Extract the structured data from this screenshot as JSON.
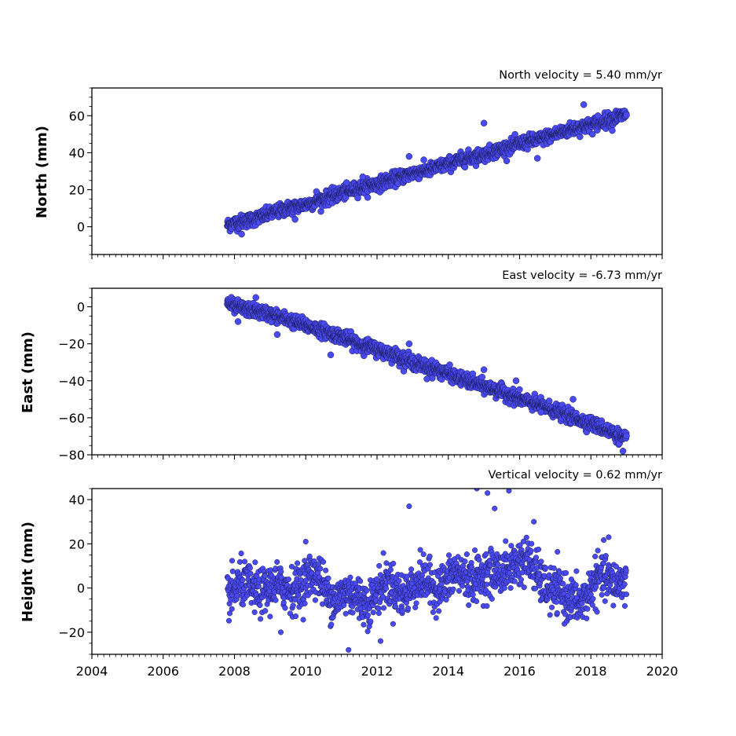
{
  "chart_data": [
    {
      "type": "scatter",
      "title": "North velocity = 5.40 mm/yr",
      "ylabel": "North (mm)",
      "xlim": [
        2004,
        2020
      ],
      "ylim": [
        -15,
        75
      ],
      "yticks": [
        0,
        20,
        40,
        60
      ],
      "ytick_labels": [
        "0",
        "20",
        "40",
        "60"
      ],
      "marker_color": "#4a4af2",
      "series": [
        {
          "x": [
            2007.8,
            2008.0,
            2008.5,
            2009.0,
            2009.5,
            2010.0,
            2010.5,
            2011.0,
            2011.5,
            2012.0,
            2012.5,
            2013.0,
            2013.5,
            2014.0,
            2014.5,
            2015.0,
            2015.5,
            2016.0,
            2016.5,
            2017.0,
            2017.5,
            2018.0,
            2018.5,
            2019.0
          ],
          "y": [
            1,
            2,
            4,
            7,
            10,
            12,
            15,
            18,
            21,
            23,
            26,
            29,
            31,
            34,
            37,
            39,
            42,
            45,
            47,
            50,
            53,
            55,
            58,
            61
          ]
        }
      ],
      "outliers": {
        "x": [
          2008.2,
          2009.7,
          2010.3,
          2011.6,
          2012.9,
          2015.0,
          2016.5,
          2017.8,
          2018.2,
          2018.6
        ],
        "y": [
          -4,
          4,
          19,
          27,
          38,
          56,
          37,
          66,
          60,
          52
        ]
      }
    },
    {
      "type": "scatter",
      "title": "East velocity = -6.73 mm/yr",
      "ylabel": "East (mm)",
      "xlim": [
        2004,
        2020
      ],
      "ylim": [
        -80,
        10
      ],
      "yticks": [
        0,
        -20,
        -40,
        -60,
        -80
      ],
      "ytick_labels": [
        "0",
        "−20",
        "−40",
        "−60",
        "−80"
      ],
      "marker_color": "#4a4af2",
      "series": [
        {
          "x": [
            2007.8,
            2008.0,
            2008.5,
            2009.0,
            2009.5,
            2010.0,
            2010.5,
            2011.0,
            2011.5,
            2012.0,
            2012.5,
            2013.0,
            2013.5,
            2014.0,
            2014.5,
            2015.0,
            2015.5,
            2016.0,
            2016.5,
            2017.0,
            2017.5,
            2018.0,
            2018.5,
            2019.0
          ],
          "y": [
            2,
            0,
            -2,
            -4,
            -7,
            -10,
            -13,
            -16,
            -20,
            -23,
            -26,
            -30,
            -33,
            -36,
            -40,
            -43,
            -46,
            -50,
            -53,
            -56,
            -60,
            -63,
            -67,
            -72
          ]
        }
      ],
      "outliers": {
        "x": [
          2008.1,
          2008.6,
          2009.2,
          2010.7,
          2012.9,
          2013.4,
          2015.0,
          2015.9,
          2016.6,
          2017.5,
          2018.9
        ],
        "y": [
          -8,
          5,
          -15,
          -26,
          -20,
          -39,
          -34,
          -40,
          -57,
          -50,
          -78
        ]
      }
    },
    {
      "type": "scatter",
      "title": "Vertical velocity = 0.62 mm/yr",
      "ylabel": "Height (mm)",
      "xlim": [
        2004,
        2020
      ],
      "ylim": [
        -30,
        45
      ],
      "yticks": [
        -20,
        0,
        20,
        40
      ],
      "ytick_labels": [
        "−20",
        "0",
        "20",
        "40"
      ],
      "xticks": [
        2004,
        2006,
        2008,
        2010,
        2012,
        2014,
        2016,
        2018,
        2020
      ],
      "xtick_labels": [
        "2004",
        "2006",
        "2008",
        "2010",
        "2012",
        "2014",
        "2016",
        "2018",
        "2020"
      ],
      "marker_color": "#4a4af2",
      "series": [
        {
          "x": [
            2007.8,
            2008.3,
            2008.8,
            2009.3,
            2009.8,
            2010.3,
            2010.8,
            2011.3,
            2011.8,
            2012.3,
            2012.8,
            2013.3,
            2013.8,
            2014.3,
            2014.8,
            2015.3,
            2015.8,
            2016.3,
            2016.8,
            2017.3,
            2017.8,
            2018.3,
            2018.8,
            2019.0
          ],
          "y": [
            0,
            -2,
            2,
            -3,
            4,
            3,
            -2,
            -6,
            -3,
            -1,
            1,
            0,
            4,
            3,
            8,
            3,
            14,
            8,
            3,
            -8,
            -2,
            2,
            6,
            4
          ]
        }
      ],
      "outliers": {
        "x": [
          2012.9,
          2014.8,
          2015.1,
          2015.3,
          2015.7,
          2011.2,
          2012.1,
          2009.3,
          2016.4,
          2018.5,
          2010.0
        ],
        "y": [
          37,
          45,
          43,
          36,
          44,
          -28,
          -24,
          -20,
          30,
          23,
          21
        ]
      }
    }
  ]
}
